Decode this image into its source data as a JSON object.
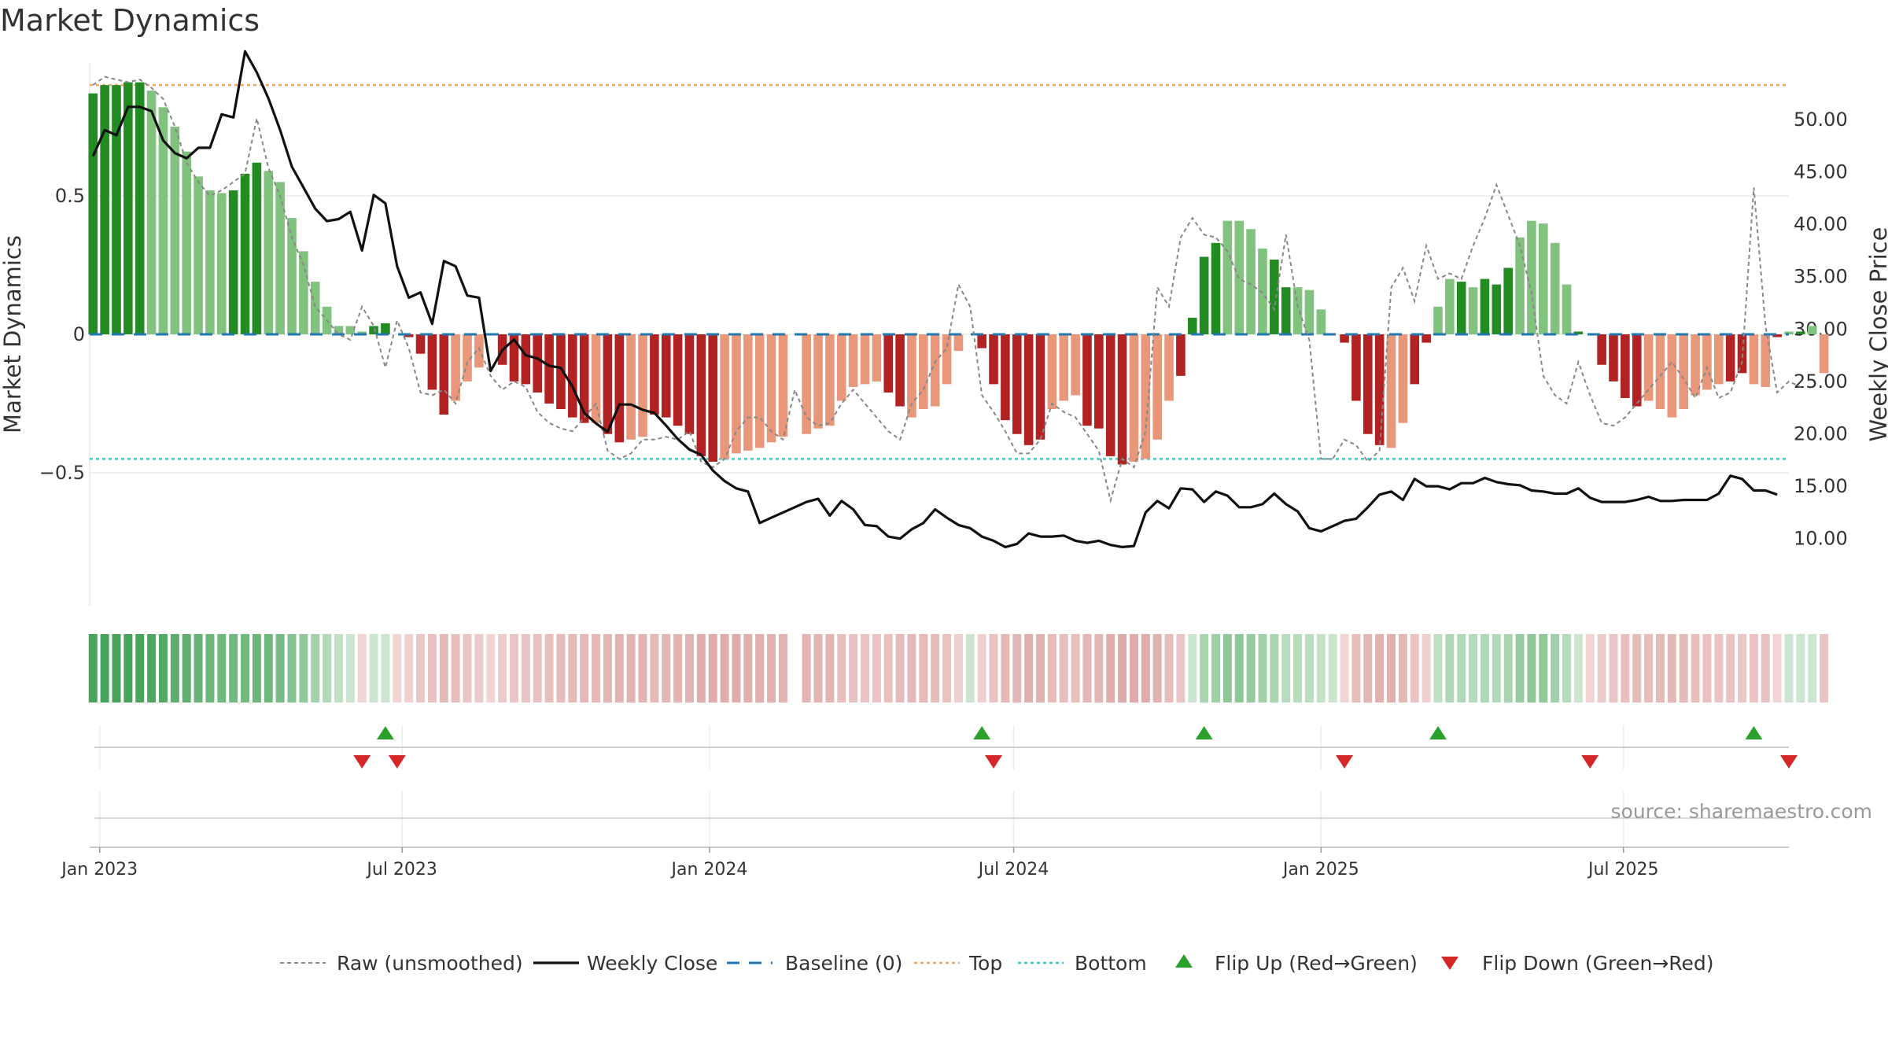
{
  "chart_data": {
    "type": "bar",
    "title": "Market Dynamics",
    "ylabel_left": "Market Dynamics",
    "ylabel_right": "Weekly Close Price",
    "ylim_left": [
      -0.98,
      0.98
    ],
    "ylim_right": [
      3.6,
      55.4
    ],
    "left_ticks": [
      {
        "v": 0.5,
        "label": "0.5"
      },
      {
        "v": 0,
        "label": "0"
      },
      {
        "v": -0.5,
        "label": "−0.5"
      }
    ],
    "right_ticks": [
      {
        "v": 50,
        "label": "50.00"
      },
      {
        "v": 45,
        "label": "45.00"
      },
      {
        "v": 40,
        "label": "40.00"
      },
      {
        "v": 35,
        "label": "35.00"
      },
      {
        "v": 30,
        "label": "30.00"
      },
      {
        "v": 25,
        "label": "25.00"
      },
      {
        "v": 20,
        "label": "20.00"
      },
      {
        "v": 15,
        "label": "15.00"
      },
      {
        "v": 10,
        "label": "10.00"
      }
    ],
    "x_start": "2022-12-26",
    "x_end": "2025-10-08",
    "week_start": "2022-12-28",
    "x_ticks": [
      {
        "label": "Jan 2023",
        "date": "2023-01-01"
      },
      {
        "label": "Jul 2023",
        "date": "2023-07-01"
      },
      {
        "label": "Jan 2024",
        "date": "2024-01-01"
      },
      {
        "label": "Jul 2024",
        "date": "2024-07-01"
      },
      {
        "label": "Jan 2025",
        "date": "2025-01-01"
      },
      {
        "label": "Jul 2025",
        "date": "2025-07-01"
      }
    ],
    "top_level": 0.9,
    "bottom_level": -0.45,
    "baseline": 0,
    "bar_values": [
      0.87,
      0.9,
      0.9,
      0.91,
      0.91,
      0.88,
      0.82,
      0.75,
      0.66,
      0.57,
      0.52,
      0.51,
      0.52,
      0.58,
      0.62,
      0.59,
      0.55,
      0.42,
      0.3,
      0.19,
      0.1,
      0.03,
      0.03,
      0.01,
      0.03,
      0.04,
      0.0,
      -0.01,
      -0.07,
      -0.2,
      -0.29,
      -0.24,
      -0.17,
      -0.12,
      0.0,
      -0.11,
      -0.17,
      -0.18,
      -0.21,
      -0.25,
      -0.27,
      -0.3,
      -0.32,
      -0.32,
      -0.36,
      -0.39,
      -0.38,
      -0.37,
      -0.29,
      -0.3,
      -0.33,
      -0.36,
      -0.44,
      -0.46,
      -0.45,
      -0.43,
      -0.42,
      -0.41,
      -0.39,
      -0.37,
      0.0,
      -0.36,
      -0.34,
      -0.33,
      -0.24,
      -0.19,
      -0.18,
      -0.17,
      -0.21,
      -0.26,
      -0.3,
      -0.27,
      -0.26,
      -0.18,
      -0.06,
      0.0,
      -0.05,
      -0.18,
      -0.31,
      -0.36,
      -0.4,
      -0.38,
      -0.27,
      -0.24,
      -0.22,
      -0.33,
      -0.34,
      -0.44,
      -0.47,
      -0.46,
      -0.45,
      -0.38,
      -0.24,
      -0.15,
      0.06,
      0.28,
      0.33,
      0.41,
      0.41,
      0.38,
      0.31,
      0.27,
      0.17,
      0.17,
      0.16,
      0.09,
      0.0,
      -0.03,
      -0.24,
      -0.36,
      -0.4,
      -0.41,
      -0.32,
      -0.18,
      -0.03,
      0.1,
      0.2,
      0.19,
      0.17,
      0.2,
      0.18,
      0.24,
      0.35,
      0.41,
      0.4,
      0.33,
      0.18,
      0.01,
      0.0,
      -0.11,
      -0.17,
      -0.23,
      -0.26,
      -0.24,
      -0.27,
      -0.3,
      -0.27,
      -0.22,
      -0.2,
      -0.18,
      -0.17,
      -0.14,
      -0.18,
      -0.19,
      -0.01,
      0.01,
      0.01,
      0.03,
      -0.14
    ],
    "bar_shades": [
      "dark",
      "dark",
      "dark",
      "dark",
      "dark",
      "light",
      "light",
      "light",
      "light",
      "light",
      "light",
      "light",
      "dark",
      "dark",
      "dark",
      "light",
      "light",
      "light",
      "light",
      "light",
      "light",
      "light",
      "light",
      "light",
      "dark",
      "dark",
      "light",
      "dark",
      "dark",
      "dark",
      "dark",
      "light",
      "light",
      "light",
      "light",
      "dark",
      "dark",
      "dark",
      "dark",
      "dark",
      "dark",
      "dark",
      "dark",
      "light",
      "dark",
      "dark",
      "light",
      "light",
      "dark",
      "dark",
      "dark",
      "dark",
      "dark",
      "dark",
      "light",
      "light",
      "light",
      "light",
      "light",
      "light",
      "light",
      "light",
      "light",
      "light",
      "light",
      "light",
      "light",
      "light",
      "dark",
      "dark",
      "light",
      "light",
      "light",
      "light",
      "light",
      "light",
      "dark",
      "dark",
      "dark",
      "dark",
      "dark",
      "dark",
      "light",
      "light",
      "light",
      "dark",
      "dark",
      "dark",
      "dark",
      "light",
      "light",
      "light",
      "light",
      "dark",
      "dark",
      "dark",
      "dark",
      "light",
      "light",
      "light",
      "light",
      "dark",
      "dark",
      "light",
      "light",
      "light",
      "dark",
      "dark",
      "dark",
      "dark",
      "dark",
      "light",
      "light",
      "dark",
      "dark",
      "light",
      "light",
      "dark",
      "light",
      "dark",
      "dark",
      "dark",
      "light",
      "light",
      "light",
      "light",
      "light",
      "dark",
      "dark",
      "dark",
      "dark",
      "dark",
      "dark",
      "light",
      "light",
      "light",
      "light",
      "light",
      "light",
      "light",
      "dark",
      "dark",
      "light",
      "light",
      "dark",
      "light",
      "dark"
    ],
    "close": [
      46.5,
      49.0,
      48.5,
      51.2,
      51.2,
      50.8,
      48.0,
      46.8,
      46.3,
      47.3,
      47.3,
      50.5,
      50.2,
      56.5,
      54.5,
      52.0,
      49.0,
      45.5,
      43.5,
      41.5,
      40.3,
      40.5,
      41.2,
      37.5,
      42.8,
      42.0,
      36.0,
      33.0,
      33.5,
      30.5,
      36.5,
      36.0,
      33.2,
      33.0,
      26.0,
      28.0,
      29.0,
      27.5,
      27.2,
      26.5,
      26.3,
      24.5,
      22.0,
      21.0,
      20.2,
      22.8,
      22.8,
      22.3,
      22.0,
      20.8,
      19.5,
      18.5,
      18.0,
      16.5,
      15.5,
      14.8,
      14.5,
      11.5,
      12.0,
      12.5,
      13.0,
      13.5,
      13.8,
      12.2,
      13.6,
      12.8,
      11.3,
      11.2,
      10.2,
      10.0,
      10.9,
      11.5,
      12.8,
      12.0,
      11.3,
      11.0,
      10.2,
      9.8,
      9.2,
      9.5,
      10.5,
      10.2,
      10.2,
      10.3,
      9.8,
      9.6,
      9.8,
      9.4,
      9.2,
      9.3,
      12.5,
      13.6,
      12.9,
      14.8,
      14.7,
      13.5,
      14.5,
      14.1,
      13.0,
      13.0,
      13.3,
      14.3,
      13.3,
      12.6,
      11.0,
      10.7,
      11.2,
      11.7,
      11.9,
      13.0,
      14.2,
      14.5,
      13.7,
      15.7,
      15.0,
      15.0,
      14.7,
      15.3,
      15.3,
      15.8,
      15.4,
      15.2,
      15.1,
      14.6,
      14.5,
      14.3,
      14.3,
      14.8,
      13.9,
      13.5,
      13.5,
      13.5,
      13.7,
      14.0,
      13.6,
      13.6,
      13.7,
      13.7,
      13.7,
      14.3,
      16.0,
      15.7,
      14.6,
      14.6,
      14.2
    ],
    "raw_values": [
      0.9,
      0.93,
      0.92,
      0.91,
      0.92,
      0.89,
      0.85,
      0.75,
      0.62,
      0.55,
      0.5,
      0.52,
      0.55,
      0.58,
      0.78,
      0.6,
      0.5,
      0.35,
      0.25,
      0.1,
      0.05,
      0.0,
      -0.02,
      0.1,
      0.03,
      -0.12,
      0.05,
      -0.05,
      -0.21,
      -0.22,
      -0.2,
      -0.25,
      -0.1,
      -0.05,
      -0.15,
      -0.2,
      -0.17,
      -0.19,
      -0.28,
      -0.32,
      -0.34,
      -0.35,
      -0.3,
      -0.25,
      -0.42,
      -0.45,
      -0.43,
      -0.38,
      -0.38,
      -0.37,
      -0.38,
      -0.35,
      -0.46,
      -0.48,
      -0.45,
      -0.35,
      -0.3,
      -0.3,
      -0.35,
      -0.38,
      -0.2,
      -0.3,
      -0.33,
      -0.32,
      -0.25,
      -0.2,
      -0.25,
      -0.3,
      -0.35,
      -0.38,
      -0.25,
      -0.2,
      -0.1,
      -0.05,
      0.18,
      0.1,
      -0.22,
      -0.28,
      -0.35,
      -0.43,
      -0.43,
      -0.38,
      -0.25,
      -0.28,
      -0.3,
      -0.36,
      -0.42,
      -0.6,
      -0.45,
      -0.48,
      -0.35,
      0.17,
      0.1,
      0.35,
      0.42,
      0.36,
      0.35,
      0.3,
      0.2,
      0.18,
      0.15,
      0.09,
      0.36,
      0.1,
      -0.02,
      -0.45,
      -0.45,
      -0.38,
      -0.4,
      -0.46,
      -0.42,
      0.17,
      0.24,
      0.12,
      0.32,
      0.2,
      0.22,
      0.2,
      0.32,
      0.42,
      0.54,
      0.43,
      0.32,
      0.15,
      -0.15,
      -0.22,
      -0.25,
      -0.1,
      -0.22,
      -0.32,
      -0.33,
      -0.3,
      -0.25,
      -0.2,
      -0.15,
      -0.1,
      -0.16,
      -0.23,
      -0.12,
      -0.23,
      -0.21,
      -0.1,
      0.53,
      0.03,
      -0.21,
      -0.17,
      -0.19
    ],
    "strip_colors": [
      "#48a35b",
      "#48a35b",
      "#48a35b",
      "#48a35b",
      "#4aa45d",
      "#4fa660",
      "#55a965",
      "#5cad6b",
      "#62b071",
      "#68b376",
      "#6cb67a",
      "#70b87d",
      "#72b97f",
      "#70b87d",
      "#6cb67a",
      "#6fb77c",
      "#76bb83",
      "#84c28f",
      "#93c99c",
      "#a3d1aa",
      "#b4d9b9",
      "#c2e0c6",
      "#cbe5cf",
      "#f0d5d3",
      "#cbe5cf",
      "#cbe5cf",
      "#f0d5d3",
      "#eed0ce",
      "#ebc8c6",
      "#e7c1bf",
      "#e4bab8",
      "#e6bebc",
      "#eac5c3",
      "#ecccca",
      "#f0d5d3",
      "#ecccca",
      "#eac6c4",
      "#e9c4c2",
      "#e8c2c0",
      "#e7bfbd",
      "#e6bdbb",
      "#e4bab8",
      "#e4b9b7",
      "#e4b9b7",
      "#e2b6b4",
      "#e1b3b1",
      "#e1b4b2",
      "#e1b4b2",
      "#e4b9b7",
      "#e3b7b5",
      "#e2b5b3",
      "#e1b3b1",
      "#dfadab",
      "#dfacaa",
      "#dfadab",
      "#dfaeac",
      "#e0afad",
      "#e0b0ae",
      "#e1b2b0",
      "#e1b3b1",
      "#ffffff",
      "#e1b3b1",
      "#e2b5b3",
      "#e3b6b4",
      "#e7bebc",
      "#e8c2c0",
      "#e9c4c2",
      "#e9c4c2",
      "#e8c1bf",
      "#e6bcba",
      "#e4b9b7",
      "#e5bbb9",
      "#e6bcba",
      "#eac3c1",
      "#eed0ce",
      "#cbe5cf",
      "#eed0ce",
      "#e9c3c1",
      "#e4b9b7",
      "#e2b6b4",
      "#e0b0ae",
      "#e0b2b0",
      "#e5bcba",
      "#e6bebc",
      "#e7c0be",
      "#e3b7b5",
      "#e3b7b5",
      "#dfadab",
      "#deaaa8",
      "#deaba9",
      "#dfacaa",
      "#e0b2b0",
      "#e6bcba",
      "#eac6c4",
      "#cbe5cf",
      "#a8d4ae",
      "#9ecfa6",
      "#8fc799",
      "#8fc799",
      "#95ca9e",
      "#a1d0a9",
      "#a8d4ae",
      "#b9dcbe",
      "#b9dcbe",
      "#bbdec0",
      "#c5e2c9",
      "#cbe5cf",
      "#f0d5d3",
      "#e6bebc",
      "#e2b6b4",
      "#e0b1af",
      "#e0b0ae",
      "#e3b7b5",
      "#e9c4c2",
      "#eed0ce",
      "#c0dfc4",
      "#b0d8b6",
      "#b1d9b7",
      "#b5dbba",
      "#b0d8b6",
      "#b3dab8",
      "#a9d4af",
      "#97cba0",
      "#8fc799",
      "#90c89a",
      "#9ecfa6",
      "#b6dbbb",
      "#cbe5cf",
      "#f0d5d3",
      "#ecccca",
      "#eac6c4",
      "#e7c0be",
      "#e6bcba",
      "#e6bebc",
      "#e5bbb9",
      "#e4b8b6",
      "#e5bbb9",
      "#e7c0be",
      "#e8c2c0",
      "#e9c4c2",
      "#e9c4c2",
      "#eac7c5",
      "#e9c4c2",
      "#e8c2c0",
      "#f0d5d3",
      "#cbe5cf",
      "#cbe5cf",
      "#cbe5cf",
      "#e9c4c2"
    ],
    "flip_up": [
      {
        "week": 25
      },
      {
        "week": 76
      },
      {
        "week": 95
      },
      {
        "week": 115
      },
      {
        "week": 142
      }
    ],
    "flip_down": [
      {
        "week": 23
      },
      {
        "week": 26
      },
      {
        "week": 77
      },
      {
        "week": 107
      },
      {
        "week": 128
      },
      {
        "week": 145
      }
    ],
    "colors": {
      "dark_green": "#228b22",
      "light_green": "#82c27f",
      "dark_red": "#b22222",
      "light_red": "#e8977a",
      "close_line": "#111111",
      "raw_line": "#888888",
      "baseline": "#1f77b4",
      "top": "#f0a868",
      "bottom": "#40c7cf",
      "flip_up": "#2ca02c",
      "flip_down": "#d62728"
    },
    "legend": [
      {
        "key": "raw",
        "label": "Raw (unsmoothed)"
      },
      {
        "key": "close",
        "label": "Weekly Close"
      },
      {
        "key": "baseline",
        "label": "Baseline (0)"
      },
      {
        "key": "top",
        "label": "Top"
      },
      {
        "key": "bottom",
        "label": "Bottom"
      },
      {
        "key": "flip_up",
        "label": "Flip Up (Red→Green)"
      },
      {
        "key": "flip_down",
        "label": "Flip Down (Green→Red)"
      }
    ],
    "source": "source: sharemaestro.com"
  }
}
